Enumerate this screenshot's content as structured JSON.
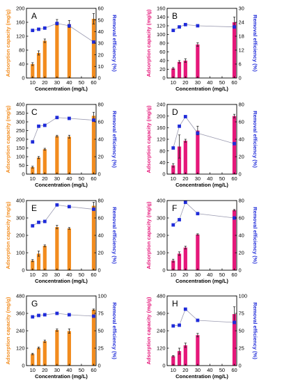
{
  "figure": {
    "colors": {
      "orange": "#F28C1E",
      "magenta": "#E5177A",
      "blue": "#1F2BD9",
      "line": "#9A9AB0"
    },
    "ylabel_left": "Adsorption capacity (mg/g)",
    "ylabel_right": "Removal efficiency (%)",
    "xlabel": "Concentration (mg/L)"
  },
  "chart_data": [
    {
      "label": "A",
      "type": "bar",
      "bar_color": "orange",
      "x": [
        10,
        15,
        20,
        30,
        40,
        60
      ],
      "values": [
        40,
        72,
        107,
        160,
        155,
        170
      ],
      "errors": [
        4,
        6,
        5,
        8,
        10,
        15
      ],
      "ylim": [
        0,
        200
      ],
      "yticks": [
        0,
        40,
        80,
        120,
        160,
        200
      ],
      "efficiency": [
        41,
        42,
        43,
        47,
        45,
        31
      ],
      "y2lim": [
        0,
        60
      ],
      "y2ticks": [
        0,
        10,
        20,
        30,
        40,
        50,
        60
      ],
      "xticks": [
        10,
        20,
        30,
        40,
        50,
        60
      ],
      "xlabel": "Concentration (mg/L)",
      "ylabel": "Adsorption capacity (mg/g)",
      "y2label": "Removal efficiency (%)"
    },
    {
      "label": "B",
      "type": "bar",
      "bar_color": "magenta",
      "x": [
        10,
        15,
        20,
        30,
        60
      ],
      "values": [
        22,
        37,
        40,
        77,
        128
      ],
      "errors": [
        2,
        3,
        4,
        4,
        12
      ],
      "ylim": [
        0,
        160
      ],
      "yticks": [
        0,
        20,
        40,
        60,
        80,
        100,
        120,
        140,
        160
      ],
      "efficiency": [
        20.5,
        22,
        23,
        22.5,
        22
      ],
      "y2lim": [
        0,
        30
      ],
      "y2ticks": [
        0,
        6,
        12,
        18,
        24,
        30
      ],
      "xticks": [
        10,
        20,
        30,
        40,
        50,
        60
      ],
      "xlabel": "Concentration (mg/L)",
      "ylabel": "Adsorption capacity (mg/g)",
      "y2label": "Removal efficiency (%)"
    },
    {
      "label": "C",
      "type": "bar",
      "bar_color": "orange",
      "x": [
        10,
        15,
        20,
        30,
        40,
        60
      ],
      "values": [
        40,
        95,
        143,
        218,
        215,
        335
      ],
      "errors": [
        5,
        6,
        5,
        5,
        8,
        20
      ],
      "ylim": [
        0,
        400
      ],
      "yticks": [
        0,
        50,
        100,
        150,
        200,
        250,
        300,
        350,
        400
      ],
      "efficiency": [
        37,
        55,
        56,
        65,
        64,
        62
      ],
      "y2lim": [
        0,
        80
      ],
      "y2ticks": [
        0,
        20,
        40,
        60,
        80
      ],
      "xticks": [
        10,
        20,
        30,
        40,
        50,
        60
      ],
      "xlabel": "Concentration (mg/L)",
      "ylabel": "Adsorption capacity (mg/g)",
      "y2label": "Removal efficiency (%)"
    },
    {
      "label": "D",
      "type": "bar",
      "bar_color": "magenta",
      "x": [
        10,
        15,
        20,
        30,
        60
      ],
      "values": [
        30,
        95,
        115,
        150,
        200
      ],
      "errors": [
        6,
        40,
        5,
        15,
        6
      ],
      "ylim": [
        0,
        240
      ],
      "yticks": [
        0,
        40,
        80,
        120,
        160,
        200,
        240
      ],
      "efficiency": [
        30,
        55,
        66,
        47,
        35
      ],
      "y2lim": [
        0,
        80
      ],
      "y2ticks": [
        0,
        20,
        40,
        60,
        80
      ],
      "xticks": [
        10,
        20,
        30,
        40,
        50,
        60
      ],
      "xlabel": "Concentration (mg/L)",
      "ylabel": "Adsorption capacity (mg/g)",
      "y2label": "Removal efficiency (%)"
    },
    {
      "label": "E",
      "type": "bar",
      "bar_color": "orange",
      "x": [
        10,
        15,
        20,
        30,
        40,
        60
      ],
      "values": [
        55,
        95,
        140,
        248,
        240,
        370
      ],
      "errors": [
        6,
        15,
        5,
        10,
        5,
        20
      ],
      "ylim": [
        0,
        400
      ],
      "yticks": [
        0,
        100,
        200,
        300,
        400
      ],
      "efficiency": [
        51,
        55,
        56,
        75,
        73,
        70
      ],
      "y2lim": [
        0,
        80
      ],
      "y2ticks": [
        0,
        20,
        40,
        60,
        80
      ],
      "xticks": [
        10,
        20,
        30,
        40,
        50,
        60
      ],
      "xlabel": "Concentration (mg/L)",
      "ylabel": "Adsorption capacity (mg/g)",
      "y2label": "Removal efficiency (%)"
    },
    {
      "label": "F",
      "type": "bar",
      "bar_color": "magenta",
      "x": [
        10,
        15,
        20,
        30,
        60
      ],
      "values": [
        55,
        95,
        130,
        205,
        345
      ],
      "errors": [
        8,
        10,
        8,
        4,
        4
      ],
      "ylim": [
        0,
        400
      ],
      "yticks": [
        0,
        100,
        200,
        300,
        400
      ],
      "efficiency": [
        52,
        58,
        78,
        65,
        60
      ],
      "y2lim": [
        0,
        80
      ],
      "y2ticks": [
        0,
        20,
        40,
        60,
        80
      ],
      "xticks": [
        10,
        20,
        30,
        40,
        50,
        60
      ],
      "xlabel": "Concentration (mg/L)",
      "ylabel": "Adsorption capacity (mg/g)",
      "y2label": "Removal efficiency (%)"
    },
    {
      "label": "G",
      "type": "bar",
      "bar_color": "orange",
      "x": [
        10,
        15,
        20,
        30,
        40,
        60
      ],
      "values": [
        80,
        122,
        168,
        245,
        238,
        385
      ],
      "errors": [
        5,
        6,
        8,
        8,
        15,
        5
      ],
      "ylim": [
        0,
        480
      ],
      "yticks": [
        0,
        120,
        240,
        360,
        480
      ],
      "efficiency": [
        70,
        72,
        73,
        75,
        73,
        71
      ],
      "y2lim": [
        0,
        100
      ],
      "y2ticks": [
        0,
        25,
        50,
        75,
        100
      ],
      "xticks": [
        10,
        20,
        30,
        40,
        50,
        60
      ],
      "xlabel": "Concentration (mg/L)",
      "ylabel": "Adsorption capacity (mg/g)",
      "y2label": "Removal efficiency (%)"
    },
    {
      "label": "H",
      "type": "bar",
      "bar_color": "magenta",
      "x": [
        10,
        15,
        20,
        30,
        60
      ],
      "values": [
        65,
        100,
        140,
        210,
        355
      ],
      "errors": [
        4,
        20,
        15,
        12,
        50
      ],
      "ylim": [
        0,
        480
      ],
      "yticks": [
        0,
        120,
        240,
        360,
        480
      ],
      "efficiency": [
        57,
        58,
        81,
        65,
        62
      ],
      "y2lim": [
        0,
        100
      ],
      "y2ticks": [
        0,
        25,
        50,
        75,
        100
      ],
      "xticks": [
        10,
        20,
        30,
        40,
        50,
        60
      ],
      "xlabel": "Concentration (mg/L)",
      "ylabel": "Adsorption capacity (mg/g)",
      "y2label": "Removal efficiency (%)"
    }
  ]
}
